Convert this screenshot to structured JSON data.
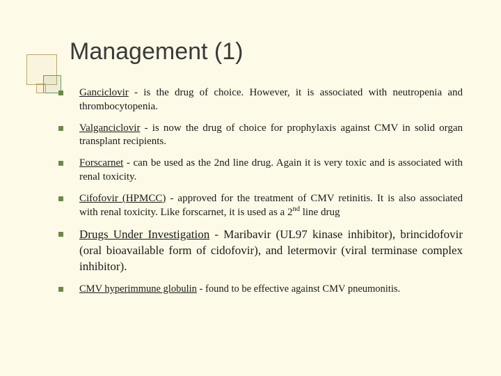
{
  "title": "Management (1)",
  "bullets": [
    {
      "lead": "Ganciclovir",
      "rest": " -  is the drug of choice. However, it is associated with neutropenia and thrombocytopenia.",
      "cls": ""
    },
    {
      "lead": "Valganciclovir",
      "rest": " - is now the drug of choice for prophylaxis against CMV in solid organ transplant recipients.",
      "cls": ""
    },
    {
      "lead": "Forscarnet",
      "rest": " - can be used as the 2nd line drug. Again it is very toxic and is associated with renal toxicity.",
      "cls": ""
    },
    {
      "lead": "Cifofovir (HPMCC)",
      "rest_pre": " - approved for the treatment of CMV retinitis. It is also associated with renal toxicity. Like forscarnet, it is used as a 2",
      "sup": "nd",
      "rest_post": " line drug",
      "cls": ""
    },
    {
      "lead": "Drugs Under Investigation",
      "rest": " - Maribavir (UL97 kinase inhibitor), brincidofovir (oral bioavailable form of cidofovir), and letermovir (viral terminase complex inhibitor).",
      "cls": "large"
    },
    {
      "lead": "CMV hyperimmune globulin",
      "rest": " - found to be effective against CMV pneumonitis.",
      "cls": "last"
    }
  ]
}
